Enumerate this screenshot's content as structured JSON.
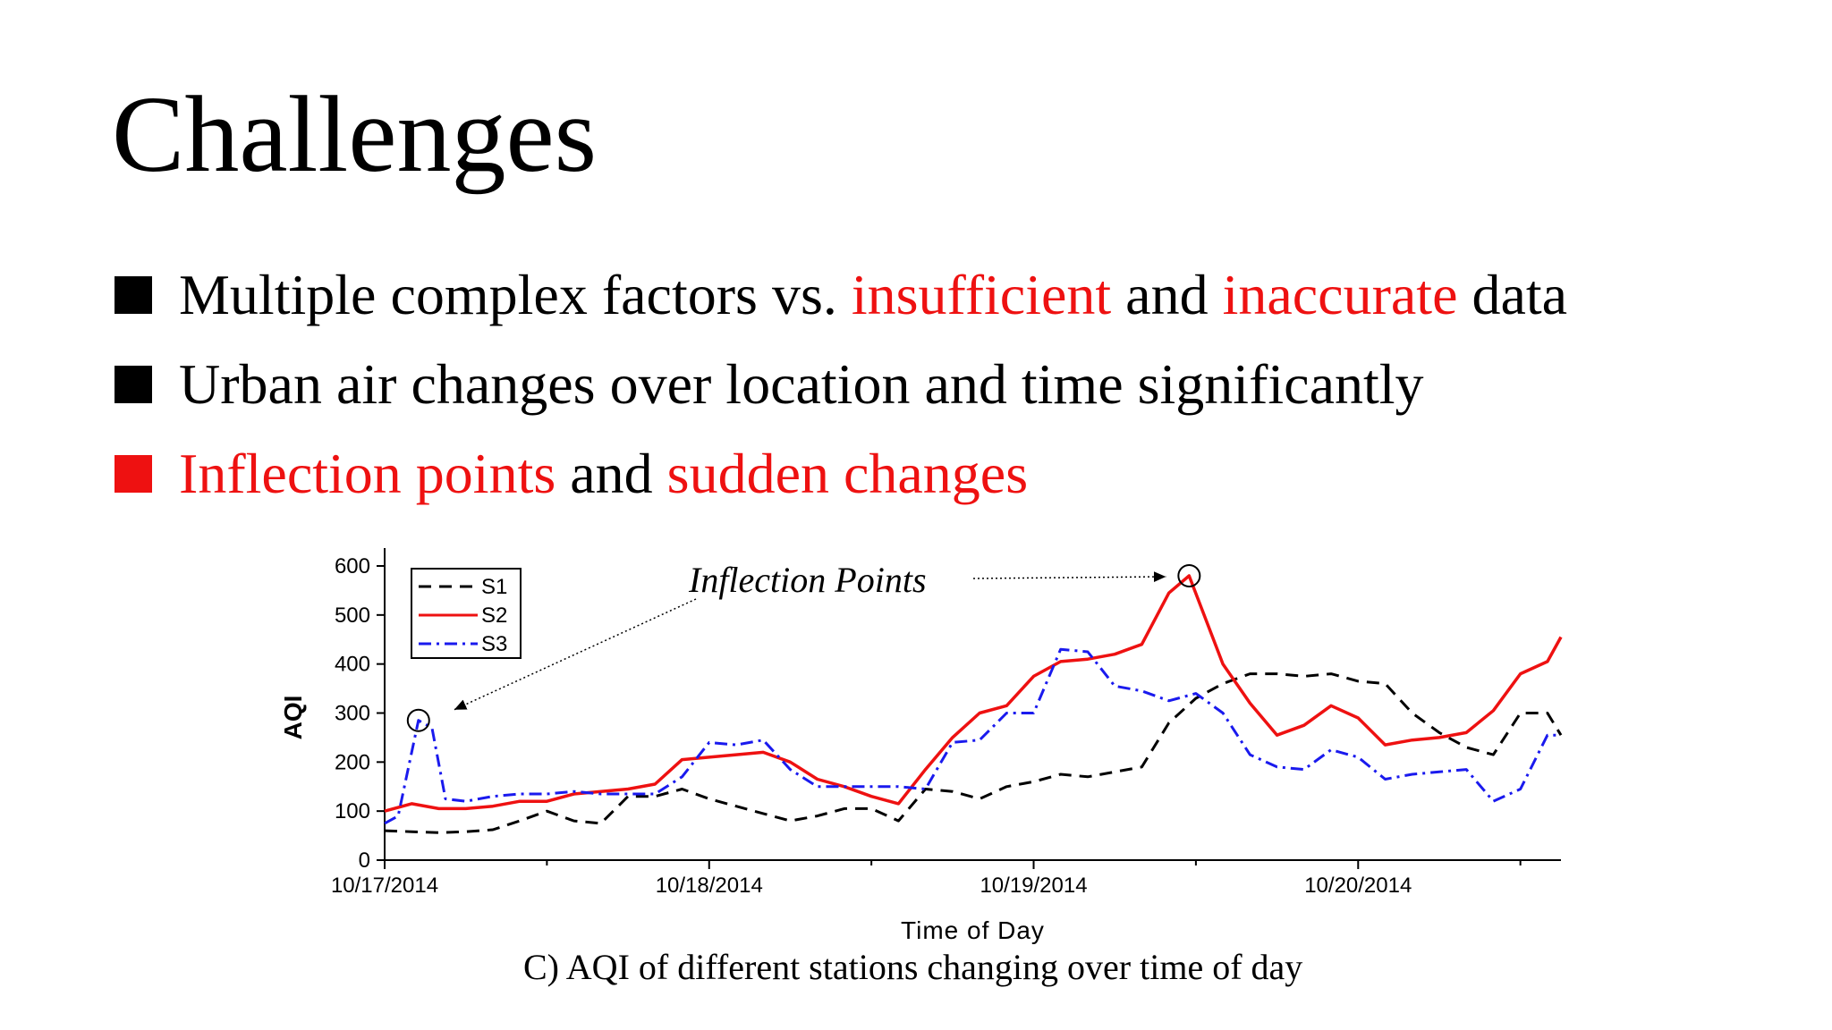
{
  "slide": {
    "title": "Challenges",
    "bullets": [
      {
        "color": "#000000",
        "parts": [
          {
            "text": "Multiple complex factors vs. ",
            "color": "#000000"
          },
          {
            "text": "insufficient",
            "color": "#ee1111"
          },
          {
            "text": " and ",
            "color": "#000000"
          },
          {
            "text": "inaccurate",
            "color": "#ee1111"
          },
          {
            "text": " data",
            "color": "#000000"
          }
        ]
      },
      {
        "color": "#000000",
        "parts": [
          {
            "text": "Urban air changes over location and time significantly",
            "color": "#000000"
          }
        ]
      },
      {
        "color": "#ee1111",
        "parts": [
          {
            "text": "Inflection points",
            "color": "#ee1111"
          },
          {
            "text": " and ",
            "color": "#000000"
          },
          {
            "text": "sudden changes",
            "color": "#ee1111"
          }
        ]
      }
    ],
    "caption": "C) AQI of different stations changing over time of day"
  },
  "chart_data": {
    "type": "line",
    "xlabel": "Time of Day",
    "ylabel": "AQI",
    "ylim": [
      0,
      600
    ],
    "yticks": [
      0,
      100,
      200,
      300,
      400,
      500,
      600
    ],
    "xlim": [
      "10/17/2014 00:00",
      "10/20/2014 15:00"
    ],
    "xticks": [
      "10/17/2014",
      "10/18/2014",
      "10/19/2014",
      "10/20/2014"
    ],
    "legend_position": "top-left",
    "grid": false,
    "annotation": "Inflection Points",
    "inflection_points": [
      {
        "series": "S3",
        "x": "10/17/2014 02:30",
        "y": 285
      },
      {
        "series": "S2",
        "x": "10/19/2014 11:30",
        "y": 580
      }
    ],
    "series": [
      {
        "name": "S1",
        "color": "#000000",
        "dash": "dashed",
        "x": [
          "10/17/2014 00:00",
          "10/17/2014 02:00",
          "10/17/2014 04:00",
          "10/17/2014 06:00",
          "10/17/2014 08:00",
          "10/17/2014 10:00",
          "10/17/2014 12:00",
          "10/17/2014 14:00",
          "10/17/2014 16:00",
          "10/17/2014 18:00",
          "10/17/2014 20:00",
          "10/17/2014 22:00",
          "10/18/2014 00:00",
          "10/18/2014 02:00",
          "10/18/2014 04:00",
          "10/18/2014 06:00",
          "10/18/2014 08:00",
          "10/18/2014 10:00",
          "10/18/2014 12:00",
          "10/18/2014 14:00",
          "10/18/2014 16:00",
          "10/18/2014 18:00",
          "10/18/2014 20:00",
          "10/18/2014 22:00",
          "10/19/2014 00:00",
          "10/19/2014 02:00",
          "10/19/2014 04:00",
          "10/19/2014 06:00",
          "10/19/2014 08:00",
          "10/19/2014 10:00",
          "10/19/2014 12:00",
          "10/19/2014 14:00",
          "10/19/2014 16:00",
          "10/19/2014 18:00",
          "10/19/2014 20:00",
          "10/19/2014 22:00",
          "10/20/2014 00:00",
          "10/20/2014 02:00",
          "10/20/2014 04:00",
          "10/20/2014 06:00",
          "10/20/2014 08:00",
          "10/20/2014 10:00",
          "10/20/2014 12:00",
          "10/20/2014 14:00",
          "10/20/2014 15:00"
        ],
        "y": [
          60,
          58,
          56,
          58,
          62,
          80,
          100,
          80,
          75,
          130,
          130,
          145,
          125,
          110,
          95,
          80,
          90,
          105,
          105,
          80,
          145,
          140,
          125,
          150,
          160,
          175,
          170,
          180,
          190,
          280,
          330,
          360,
          380,
          380,
          375,
          380,
          365,
          360,
          300,
          260,
          230,
          215,
          300,
          300,
          255
        ]
      },
      {
        "name": "S2",
        "color": "#ee1111",
        "dash": "solid",
        "x": [
          "10/17/2014 00:00",
          "10/17/2014 02:00",
          "10/17/2014 04:00",
          "10/17/2014 06:00",
          "10/17/2014 08:00",
          "10/17/2014 10:00",
          "10/17/2014 12:00",
          "10/17/2014 14:00",
          "10/17/2014 16:00",
          "10/17/2014 18:00",
          "10/17/2014 20:00",
          "10/17/2014 22:00",
          "10/18/2014 00:00",
          "10/18/2014 02:00",
          "10/18/2014 04:00",
          "10/18/2014 06:00",
          "10/18/2014 08:00",
          "10/18/2014 10:00",
          "10/18/2014 12:00",
          "10/18/2014 14:00",
          "10/18/2014 16:00",
          "10/18/2014 18:00",
          "10/18/2014 20:00",
          "10/18/2014 22:00",
          "10/19/2014 00:00",
          "10/19/2014 02:00",
          "10/19/2014 04:00",
          "10/19/2014 06:00",
          "10/19/2014 08:00",
          "10/19/2014 10:00",
          "10/19/2014 11:30",
          "10/19/2014 14:00",
          "10/19/2014 16:00",
          "10/19/2014 18:00",
          "10/19/2014 20:00",
          "10/19/2014 22:00",
          "10/20/2014 00:00",
          "10/20/2014 02:00",
          "10/20/2014 04:00",
          "10/20/2014 06:00",
          "10/20/2014 08:00",
          "10/20/2014 10:00",
          "10/20/2014 12:00",
          "10/20/2014 14:00",
          "10/20/2014 15:00"
        ],
        "y": [
          100,
          115,
          105,
          105,
          110,
          120,
          120,
          135,
          140,
          145,
          155,
          205,
          210,
          215,
          220,
          200,
          165,
          150,
          130,
          115,
          185,
          250,
          300,
          315,
          375,
          405,
          410,
          420,
          440,
          545,
          580,
          400,
          320,
          255,
          275,
          315,
          290,
          235,
          245,
          250,
          260,
          305,
          380,
          405,
          455
        ]
      },
      {
        "name": "S3",
        "color": "#1a1aee",
        "dash": "dashdot",
        "x": [
          "10/17/2014 00:00",
          "10/17/2014 01:00",
          "10/17/2014 02:30",
          "10/17/2014 03:30",
          "10/17/2014 04:30",
          "10/17/2014 06:00",
          "10/17/2014 08:00",
          "10/17/2014 10:00",
          "10/17/2014 12:00",
          "10/17/2014 14:00",
          "10/17/2014 16:00",
          "10/17/2014 18:00",
          "10/17/2014 20:00",
          "10/17/2014 22:00",
          "10/18/2014 00:00",
          "10/18/2014 02:00",
          "10/18/2014 04:00",
          "10/18/2014 06:00",
          "10/18/2014 08:00",
          "10/18/2014 10:00",
          "10/18/2014 12:00",
          "10/18/2014 14:00",
          "10/18/2014 16:00",
          "10/18/2014 18:00",
          "10/18/2014 20:00",
          "10/18/2014 22:00",
          "10/19/2014 00:00",
          "10/19/2014 02:00",
          "10/19/2014 04:00",
          "10/19/2014 06:00",
          "10/19/2014 08:00",
          "10/19/2014 10:00",
          "10/19/2014 12:00",
          "10/19/2014 14:00",
          "10/19/2014 16:00",
          "10/19/2014 18:00",
          "10/19/2014 20:00",
          "10/19/2014 22:00",
          "10/20/2014 00:00",
          "10/20/2014 02:00",
          "10/20/2014 04:00",
          "10/20/2014 06:00",
          "10/20/2014 08:00",
          "10/20/2014 10:00",
          "10/20/2014 12:00",
          "10/20/2014 14:00",
          "10/20/2014 15:00"
        ],
        "y": [
          75,
          90,
          285,
          270,
          125,
          120,
          130,
          135,
          135,
          140,
          135,
          135,
          135,
          170,
          240,
          235,
          245,
          185,
          150,
          150,
          150,
          150,
          145,
          240,
          245,
          300,
          300,
          430,
          425,
          355,
          345,
          325,
          340,
          300,
          215,
          190,
          185,
          225,
          210,
          165,
          175,
          180,
          185,
          120,
          145,
          255,
          255
        ]
      }
    ]
  }
}
